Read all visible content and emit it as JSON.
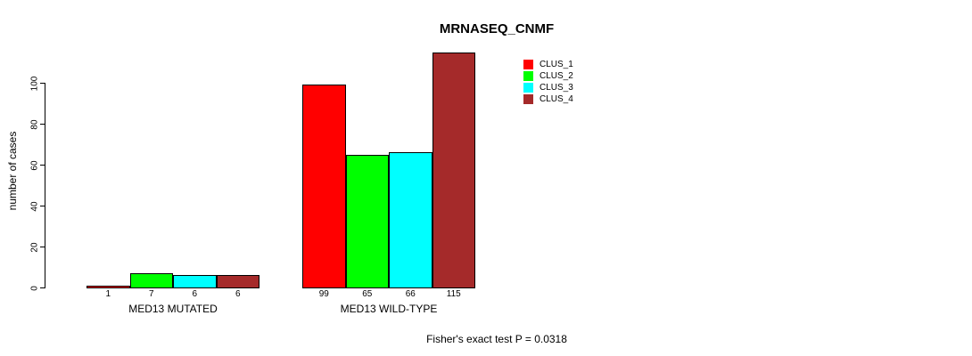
{
  "title": "MRNASEQ_CNMF",
  "footer": "Fisher's exact test P = 0.0318",
  "y_axis": {
    "label": "number of cases",
    "ticks": [
      0,
      20,
      40,
      60,
      80,
      100
    ]
  },
  "legend": [
    {
      "label": "CLUS_1",
      "color": "#FF0000"
    },
    {
      "label": "CLUS_2",
      "color": "#00FF00"
    },
    {
      "label": "CLUS_3",
      "color": "#00FFFF"
    },
    {
      "label": "CLUS_4",
      "color": "#A52A2A"
    }
  ],
  "chart_data": {
    "type": "bar",
    "title": "MRNASEQ_CNMF",
    "xlabel": "",
    "ylabel": "number of cases",
    "ylim": [
      0,
      115
    ],
    "y_ticks": [
      0,
      20,
      40,
      60,
      80,
      100
    ],
    "grid": false,
    "legend_position": "top-right-inside",
    "categories": [
      "MED13 MUTATED",
      "MED13 WILD-TYPE"
    ],
    "series": [
      {
        "name": "CLUS_1",
        "color": "#FF0000",
        "values": [
          1,
          99
        ]
      },
      {
        "name": "CLUS_2",
        "color": "#00FF00",
        "values": [
          7,
          65
        ]
      },
      {
        "name": "CLUS_3",
        "color": "#00FFFF",
        "values": [
          6,
          66
        ]
      },
      {
        "name": "CLUS_4",
        "color": "#A52A2A",
        "values": [
          6,
          115
        ]
      }
    ],
    "bar_value_labels": [
      [
        1,
        7,
        6,
        6
      ],
      [
        99,
        65,
        66,
        115
      ]
    ],
    "annotation": "Fisher's exact test P = 0.0318"
  }
}
